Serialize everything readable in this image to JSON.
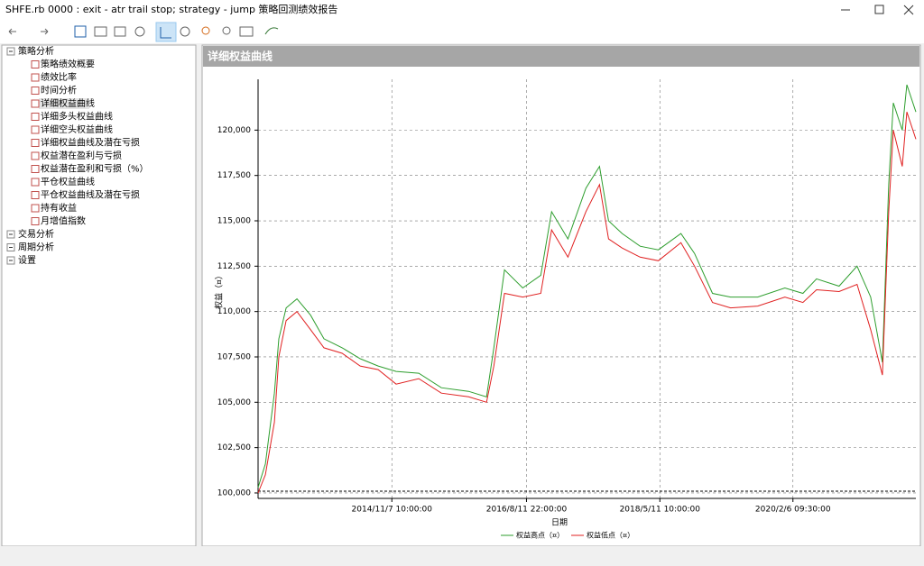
{
  "window": {
    "title": "SHFE.rb 0000 : exit - atr trail stop; strategy - jump 策略回测绩效报告"
  },
  "tree": [
    {
      "label": "策略分析",
      "children": [
        "策略绩效概要",
        "绩效比率",
        "时间分析",
        "详细权益曲线",
        "详细多头权益曲线",
        "详细空头权益曲线",
        "详细权益曲线及潜在亏损",
        "权益潜在盈利与亏损",
        "权益潜在盈利和亏损（%）",
        "平仓权益曲线",
        "平仓权益曲线及潜在亏损",
        "持有收益",
        "月增值指数"
      ]
    },
    {
      "label": "交易分析"
    },
    {
      "label": "周期分析"
    },
    {
      "label": "设置"
    }
  ],
  "chart_data": {
    "type": "line",
    "title": "详细权益曲线",
    "y_label": "权益（¤）",
    "x_label": "日期",
    "grid": true,
    "x": [
      "2013-02-06",
      "2013-03-13",
      "2013-04-25",
      "2013-05-16",
      "2013-06-20",
      "2013-08-11",
      "2013-10-15",
      "2013-12-18",
      "2014-03-15",
      "2014-06-09",
      "2014-09-03",
      "2014-11-28",
      "2015-03-16",
      "2015-07-02",
      "2015-11-09",
      "2016-02-03",
      "2016-03-09",
      "2016-04-29",
      "2016-07-25",
      "2016-10-19",
      "2016-12-10",
      "2017-02-26",
      "2017-05-23",
      "2017-07-27",
      "2017-09-08",
      "2017-11-12",
      "2018-02-06",
      "2018-05-04",
      "2018-08-20",
      "2018-10-24",
      "2019-01-18",
      "2019-04-14",
      "2019-08-22",
      "2019-12-30",
      "2020-03-25",
      "2020-05-29",
      "2020-09-14",
      "2020-12-09",
      "2021-02-12",
      "2021-04-09",
      "2021-05-09",
      "2021-05-31",
      "2021-07-13",
      "2021-08-04",
      "2021-09-16"
    ],
    "series": [
      {
        "name": "权益高点（¤）",
        "color": "#2e9e2e",
        "values": [
          100300,
          101600,
          105500,
          108500,
          110200,
          110700,
          109800,
          108500,
          108000,
          107400,
          107000,
          106700,
          106600,
          105800,
          105600,
          105300,
          108000,
          112300,
          111300,
          112000,
          115500,
          114000,
          116800,
          118000,
          115000,
          114300,
          113600,
          113400,
          114300,
          113200,
          111000,
          110800,
          110800,
          111300,
          111000,
          111800,
          111400,
          112500,
          110800,
          107200,
          117000,
          121500,
          120000,
          122500,
          121000
        ]
      },
      {
        "name": "权益低点（¤）",
        "color": "#e02020",
        "values": [
          100000,
          101000,
          103900,
          107500,
          109500,
          110000,
          109000,
          108000,
          107700,
          107000,
          106800,
          106000,
          106300,
          105500,
          105300,
          105000,
          107000,
          111000,
          110800,
          111000,
          114500,
          113000,
          115500,
          117000,
          114000,
          113500,
          113000,
          112800,
          113800,
          112500,
          110500,
          110200,
          110300,
          110800,
          110500,
          111200,
          111100,
          111500,
          109000,
          106500,
          115500,
          120000,
          118000,
          121000,
          119500
        ]
      }
    ],
    "xlim": [
      "2013-02-06",
      "2021-09-16"
    ],
    "xticks": [
      {
        "value": "2014-11-07 10:00:00",
        "label": "2014/11/7 10:00:00"
      },
      {
        "value": "2016-08-11 22:00:00",
        "label": "2016/8/11 22:00:00"
      },
      {
        "value": "2018-05-11 10:00:00",
        "label": "2018/5/11 10:00:00"
      },
      {
        "value": "2020-02-06 09:30:00",
        "label": "2020/2/6 09:30:00"
      }
    ],
    "ylim": [
      99700,
      122800
    ],
    "yticks": [
      {
        "value": 100000,
        "label": "100,000"
      },
      {
        "value": 102500,
        "label": "102,500"
      },
      {
        "value": 105000,
        "label": "105,000"
      },
      {
        "value": 107500,
        "label": "107,500"
      },
      {
        "value": 110000,
        "label": "110,000"
      },
      {
        "value": 112500,
        "label": "112,500"
      },
      {
        "value": 115000,
        "label": "115,000"
      },
      {
        "value": 117500,
        "label": "117,500"
      },
      {
        "value": 120000,
        "label": "120,000"
      }
    ]
  }
}
